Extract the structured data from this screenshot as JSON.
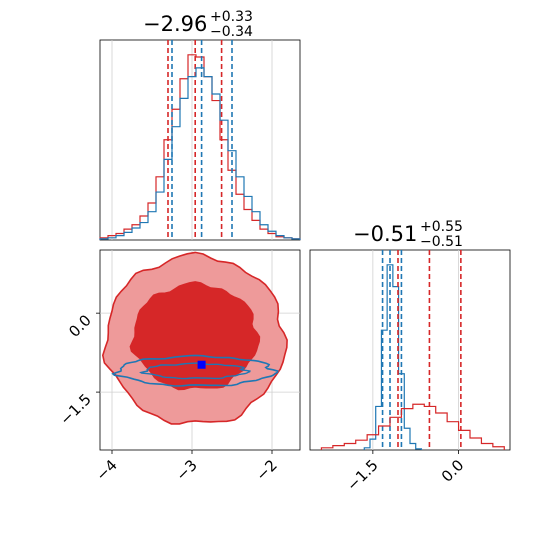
{
  "colors": {
    "red": "#d62728",
    "blue": "#1f77b4",
    "red_fill": "#ee9a9a",
    "red_fill_dark": "#d62728",
    "grid": "#d0d0d0",
    "marker": "#0000ff"
  },
  "chart_data": [
    {
      "type": "histogram",
      "panel": "top-left",
      "title": {
        "value": "−2.96",
        "plus": "+0.33",
        "minus": "−0.34"
      },
      "xlim": [
        -4.15,
        -1.65
      ],
      "x_ticks": [
        -4,
        -3,
        -2
      ],
      "grid": true,
      "series": [
        {
          "color": "red",
          "bins_x": [
            -4.1,
            -4.0,
            -3.9,
            -3.8,
            -3.7,
            -3.6,
            -3.5,
            -3.4,
            -3.3,
            -3.2,
            -3.1,
            -3.0,
            -2.9,
            -2.8,
            -2.7,
            -2.6,
            -2.5,
            -2.4,
            -2.3,
            -2.2,
            -2.1,
            -2.0,
            -1.9,
            -1.8,
            -1.7
          ],
          "counts": [
            2,
            4,
            6,
            10,
            14,
            22,
            34,
            58,
            92,
            120,
            148,
            170,
            168,
            150,
            128,
            92,
            64,
            42,
            28,
            18,
            10,
            6,
            3,
            2,
            1
          ],
          "quantile_lines": [
            -3.3,
            -2.96,
            -2.63
          ]
        },
        {
          "color": "blue",
          "bins_x": [
            -4.1,
            -4.0,
            -3.9,
            -3.8,
            -3.7,
            -3.6,
            -3.5,
            -3.4,
            -3.3,
            -3.2,
            -3.1,
            -3.0,
            -2.9,
            -2.8,
            -2.7,
            -2.6,
            -2.5,
            -2.4,
            -2.3,
            -2.2,
            -2.1,
            -2.0,
            -1.9,
            -1.8,
            -1.7
          ],
          "counts": [
            1,
            2,
            4,
            7,
            11,
            16,
            26,
            44,
            74,
            104,
            130,
            150,
            158,
            150,
            134,
            110,
            82,
            58,
            40,
            26,
            14,
            8,
            4,
            2,
            1
          ],
          "quantile_lines": [
            -3.25,
            -2.88,
            -2.5
          ]
        }
      ]
    },
    {
      "type": "histogram",
      "panel": "bottom-right",
      "title": {
        "value": "−0.51",
        "plus": "+0.55",
        "minus": "−0.51"
      },
      "xlim": [
        -2.6,
        0.9
      ],
      "x_ticks": [
        -1.5,
        0.0
      ],
      "x_tick_labels": [
        "−1.5",
        "0.0"
      ],
      "grid": true,
      "series": [
        {
          "color": "blue",
          "bins_x": [
            -1.6,
            -1.5,
            -1.4,
            -1.3,
            -1.2,
            -1.1,
            -1.0,
            -0.9,
            -0.8,
            -0.7
          ],
          "counts": [
            2,
            10,
            40,
            110,
            170,
            150,
            70,
            20,
            6,
            1
          ],
          "quantile_lines": [
            -1.33,
            -1.2,
            -1.0
          ]
        },
        {
          "color": "red",
          "bins_x": [
            -2.3,
            -2.1,
            -1.9,
            -1.7,
            -1.5,
            -1.3,
            -1.1,
            -0.9,
            -0.7,
            -0.5,
            -0.3,
            -0.1,
            0.1,
            0.3,
            0.5,
            0.7
          ],
          "counts": [
            2,
            4,
            6,
            9,
            14,
            22,
            30,
            38,
            42,
            40,
            34,
            26,
            18,
            11,
            6,
            3
          ],
          "quantile_lines": [
            -1.06,
            -0.51,
            0.04
          ]
        }
      ]
    },
    {
      "type": "contour",
      "panel": "bottom-left",
      "xlim": [
        -4.15,
        -1.65
      ],
      "ylim": [
        -2.6,
        1.2
      ],
      "x_ticks": [
        -4,
        -3,
        -2
      ],
      "x_tick_labels": [
        "−4",
        "−3",
        "−2"
      ],
      "y_ticks": [
        0.0,
        -1.5
      ],
      "y_tick_labels": [
        "0.0",
        "−1.5"
      ],
      "grid": true,
      "red_levels": [
        {
          "center": [
            -2.96,
            -0.51
          ],
          "rx": 1.12,
          "ry": 1.6
        },
        {
          "center": [
            -2.96,
            -0.45
          ],
          "rx": 0.78,
          "ry": 1.0
        }
      ],
      "blue_levels": [
        {
          "center": [
            -2.95,
            -1.1
          ],
          "rx": 0.98,
          "ry": 0.28
        },
        {
          "center": [
            -2.95,
            -1.1
          ],
          "rx": 0.64,
          "ry": 0.14
        }
      ],
      "marker": {
        "x": -2.88,
        "y": -0.98
      }
    }
  ]
}
